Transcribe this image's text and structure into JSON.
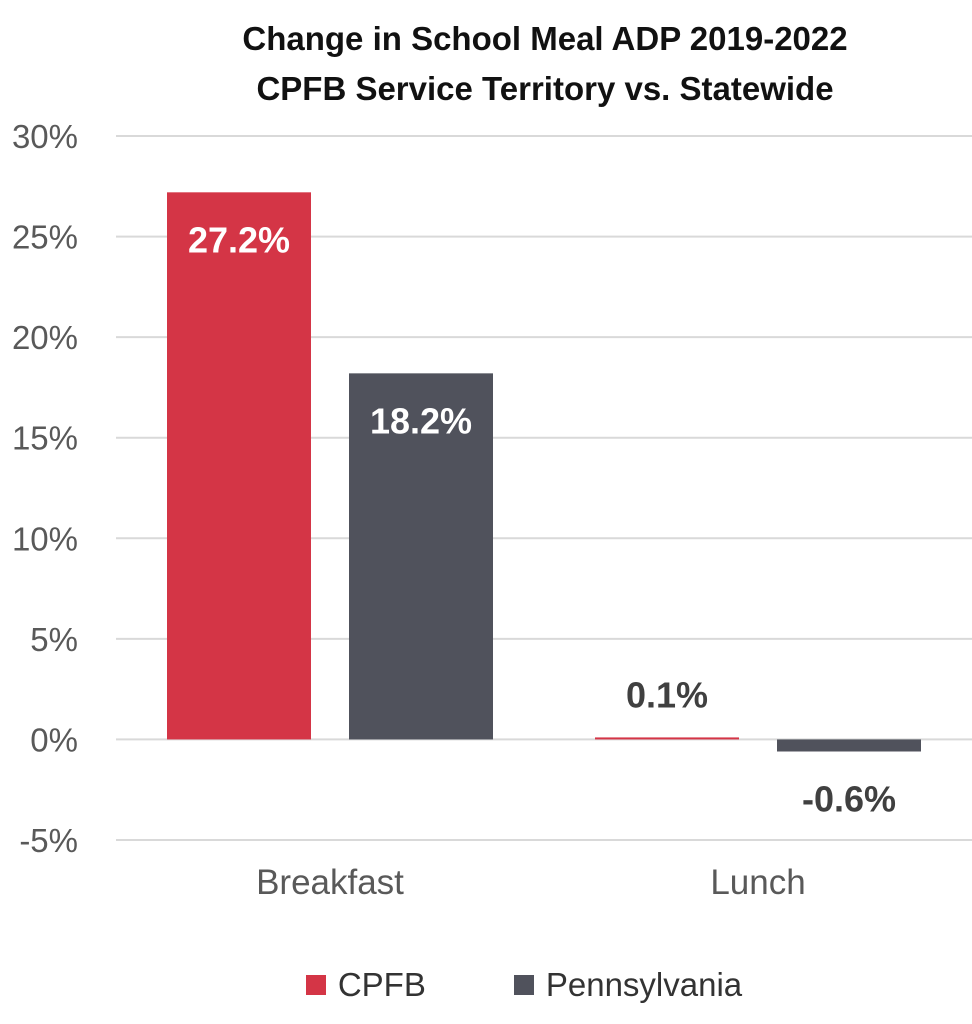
{
  "chart_data": {
    "type": "bar",
    "title_line1": "Change in School Meal ADP 2019-2022",
    "title_line2": "CPFB Service Territory vs. Statewide",
    "categories": [
      "Breakfast",
      "Lunch"
    ],
    "series": [
      {
        "name": "CPFB",
        "color": "#d43546",
        "values": [
          27.2,
          0.1
        ],
        "labels": [
          "27.2%",
          "0.1%"
        ]
      },
      {
        "name": "Pennsylvania",
        "color": "#50525c",
        "values": [
          18.2,
          -0.6
        ],
        "labels": [
          "18.2%",
          "-0.6%"
        ]
      }
    ],
    "y_ticks": [
      30,
      25,
      20,
      15,
      10,
      5,
      0,
      -5
    ],
    "y_tick_labels": [
      "30%",
      "25%",
      "20%",
      "15%",
      "10%",
      "5%",
      "0%",
      "-5%"
    ],
    "ylim": [
      -5,
      30
    ],
    "grid": true,
    "legend_position": "bottom"
  }
}
